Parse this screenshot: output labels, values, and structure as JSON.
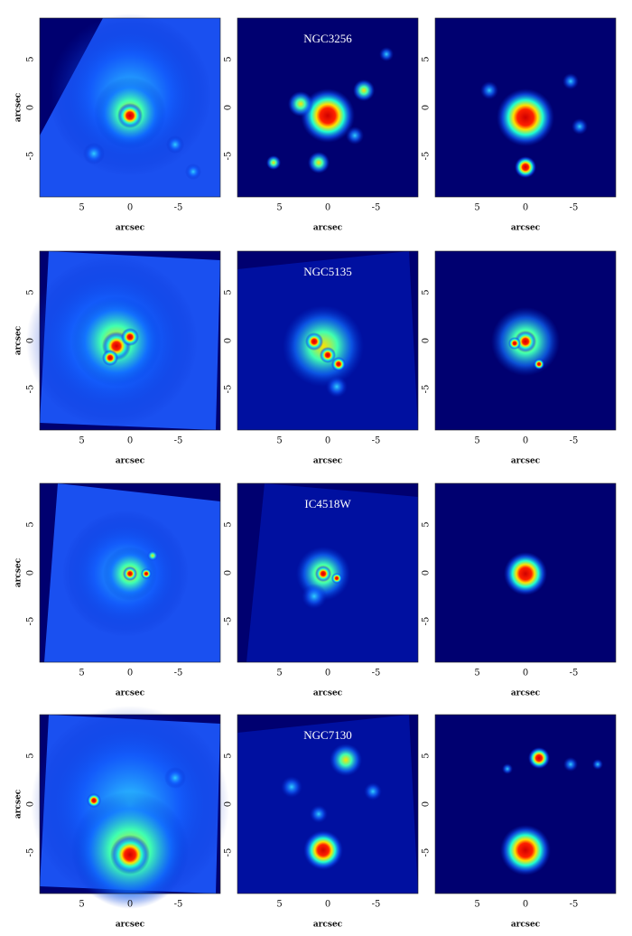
{
  "figure": {
    "rows": [
      {
        "title": "NGC3256"
      },
      {
        "title": "NGC5135"
      },
      {
        "title": "IC4518W"
      },
      {
        "title": "NGC7130"
      }
    ],
    "axis_label": "arcsec",
    "ticks": [
      5,
      0,
      -5
    ]
  }
}
